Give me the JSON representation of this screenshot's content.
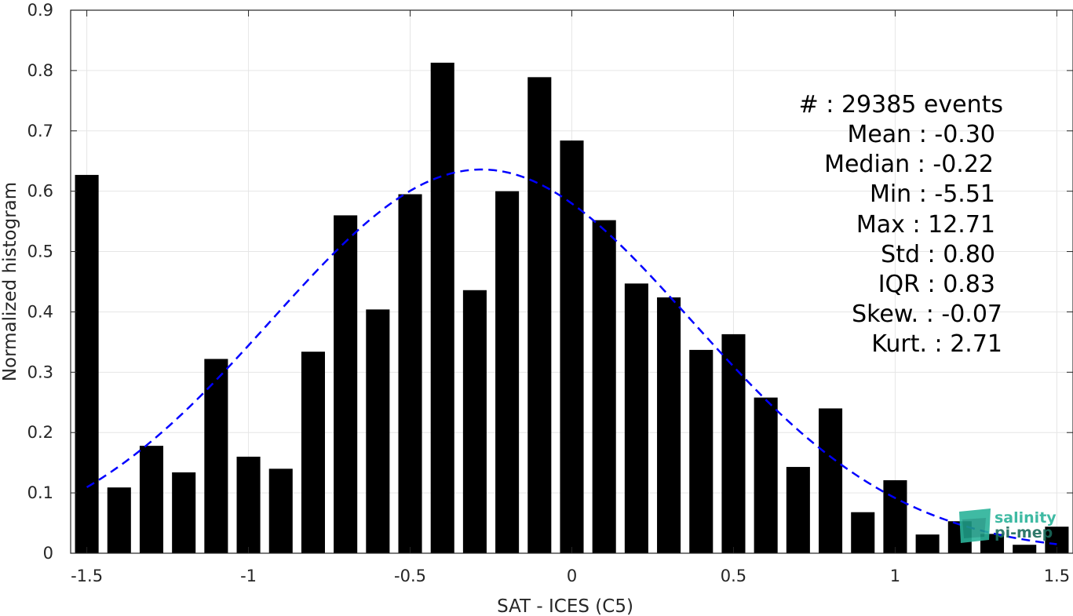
{
  "chart_data": {
    "type": "bar",
    "title": "",
    "xlabel": "SAT - ICES (C5)",
    "ylabel": "Normalized histogram",
    "xlim": [
      -1.55,
      1.55
    ],
    "ylim": [
      0,
      0.9
    ],
    "grid": true,
    "x_ticks": [
      -1.5,
      -1,
      -0.5,
      0,
      0.5,
      1,
      1.5
    ],
    "x_tick_labels": [
      "-1.5",
      "-1",
      "-0.5",
      "0",
      "0.5",
      "1",
      "1.5"
    ],
    "y_ticks": [
      0,
      0.1,
      0.2,
      0.3,
      0.4,
      0.5,
      0.6,
      0.7,
      0.8,
      0.9
    ],
    "y_tick_labels": [
      "0",
      "0.1",
      "0.2",
      "0.3",
      "0.4",
      "0.5",
      "0.6",
      "0.7",
      "0.8",
      "0.9"
    ],
    "bin_width": 0.1,
    "bar_color": "#000000",
    "bins": [
      -1.5,
      -1.4,
      -1.3,
      -1.2,
      -1.1,
      -1.0,
      -0.9,
      -0.8,
      -0.7,
      -0.6,
      -0.5,
      -0.4,
      -0.3,
      -0.2,
      -0.1,
      0.0,
      0.1,
      0.2,
      0.3,
      0.4,
      0.5,
      0.6,
      0.7,
      0.8,
      0.9,
      1.0,
      1.1,
      1.2,
      1.3,
      1.4,
      1.5
    ],
    "values": [
      0.627,
      0.109,
      0.178,
      0.134,
      0.322,
      0.16,
      0.14,
      0.334,
      0.56,
      0.404,
      0.595,
      0.813,
      0.436,
      0.6,
      0.789,
      0.684,
      0.552,
      0.447,
      0.424,
      0.337,
      0.363,
      0.258,
      0.143,
      0.24,
      0.068,
      0.121,
      0.031,
      0.053,
      0.032,
      0.014,
      0.044
    ],
    "fit_curve": {
      "style": "dashed",
      "color": "#0000ff",
      "mean": -0.28,
      "peak": 0.636,
      "sigma": 0.65
    }
  },
  "stats": {
    "events": "#  : 29385 events",
    "mean": "Mean : -0.30",
    "median": "Median : -0.22",
    "min": "Min : -5.51",
    "max": "Max : 12.71",
    "std": "Std : 0.80",
    "iqr": "IQR : 0.83",
    "skew": "Skew. : -0.07",
    "kurt": "Kurt. : 2.71"
  },
  "logo": {
    "line1": "salinity",
    "line2": "pi-mep",
    "color_dark": "#1a6b5c",
    "color_light": "#2bb39a"
  }
}
